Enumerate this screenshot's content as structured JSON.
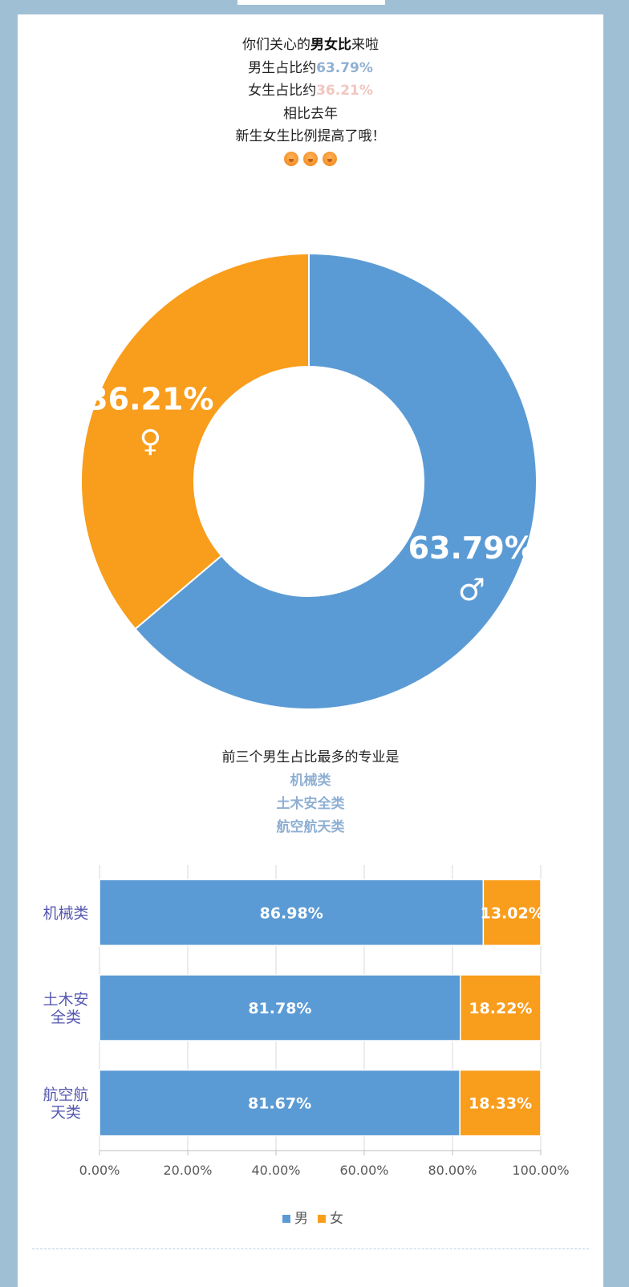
{
  "intro": {
    "line1_prefix": "你们关心的",
    "line1_bold": "男女比",
    "line1_suffix": "来啦",
    "male_prefix": "男生占比约",
    "male_value": "63.79%",
    "female_prefix": "女生占比约",
    "female_value": "36.21%",
    "line4": "相比去年",
    "line5": "新生女生比例提高了哦！"
  },
  "section2": {
    "heading": "前三个男生占比最多的专业是",
    "majors": [
      "机械类",
      "土木安全类",
      "航空航天类"
    ]
  },
  "colors": {
    "male": "#5b9bd5",
    "female": "#f99d1c",
    "category_label": "#5659b0",
    "highlight_blue": "#8fb0d3",
    "highlight_pink": "#f2c6c0"
  },
  "chart_data": [
    {
      "type": "pie",
      "variant": "donut",
      "slices": [
        {
          "label": "63.79%",
          "symbol": "♂",
          "value": 63.79,
          "color": "#5b9bd5"
        },
        {
          "label": "36.21%",
          "symbol": "♀",
          "value": 36.21,
          "color": "#f99d1c"
        }
      ]
    },
    {
      "type": "bar",
      "orientation": "horizontal",
      "stacked": true,
      "categories": [
        [
          "机械类"
        ],
        [
          "土木安",
          "全类"
        ],
        [
          "航空航",
          "天类"
        ]
      ],
      "series": [
        {
          "name": "男",
          "values": [
            86.98,
            81.78,
            81.67
          ],
          "labels": [
            "86.98%",
            "81.78%",
            "81.67%"
          ],
          "color": "#5b9bd5"
        },
        {
          "name": "女",
          "values": [
            13.02,
            18.22,
            18.33
          ],
          "labels": [
            "13.02%",
            "18.22%",
            "18.33%"
          ],
          "color": "#f99d1c"
        }
      ],
      "xlim": [
        0,
        100
      ],
      "xticks": [
        "0.00%",
        "20.00%",
        "40.00%",
        "60.00%",
        "80.00%",
        "100.00%"
      ],
      "grid": true,
      "legend": "bottom"
    }
  ]
}
